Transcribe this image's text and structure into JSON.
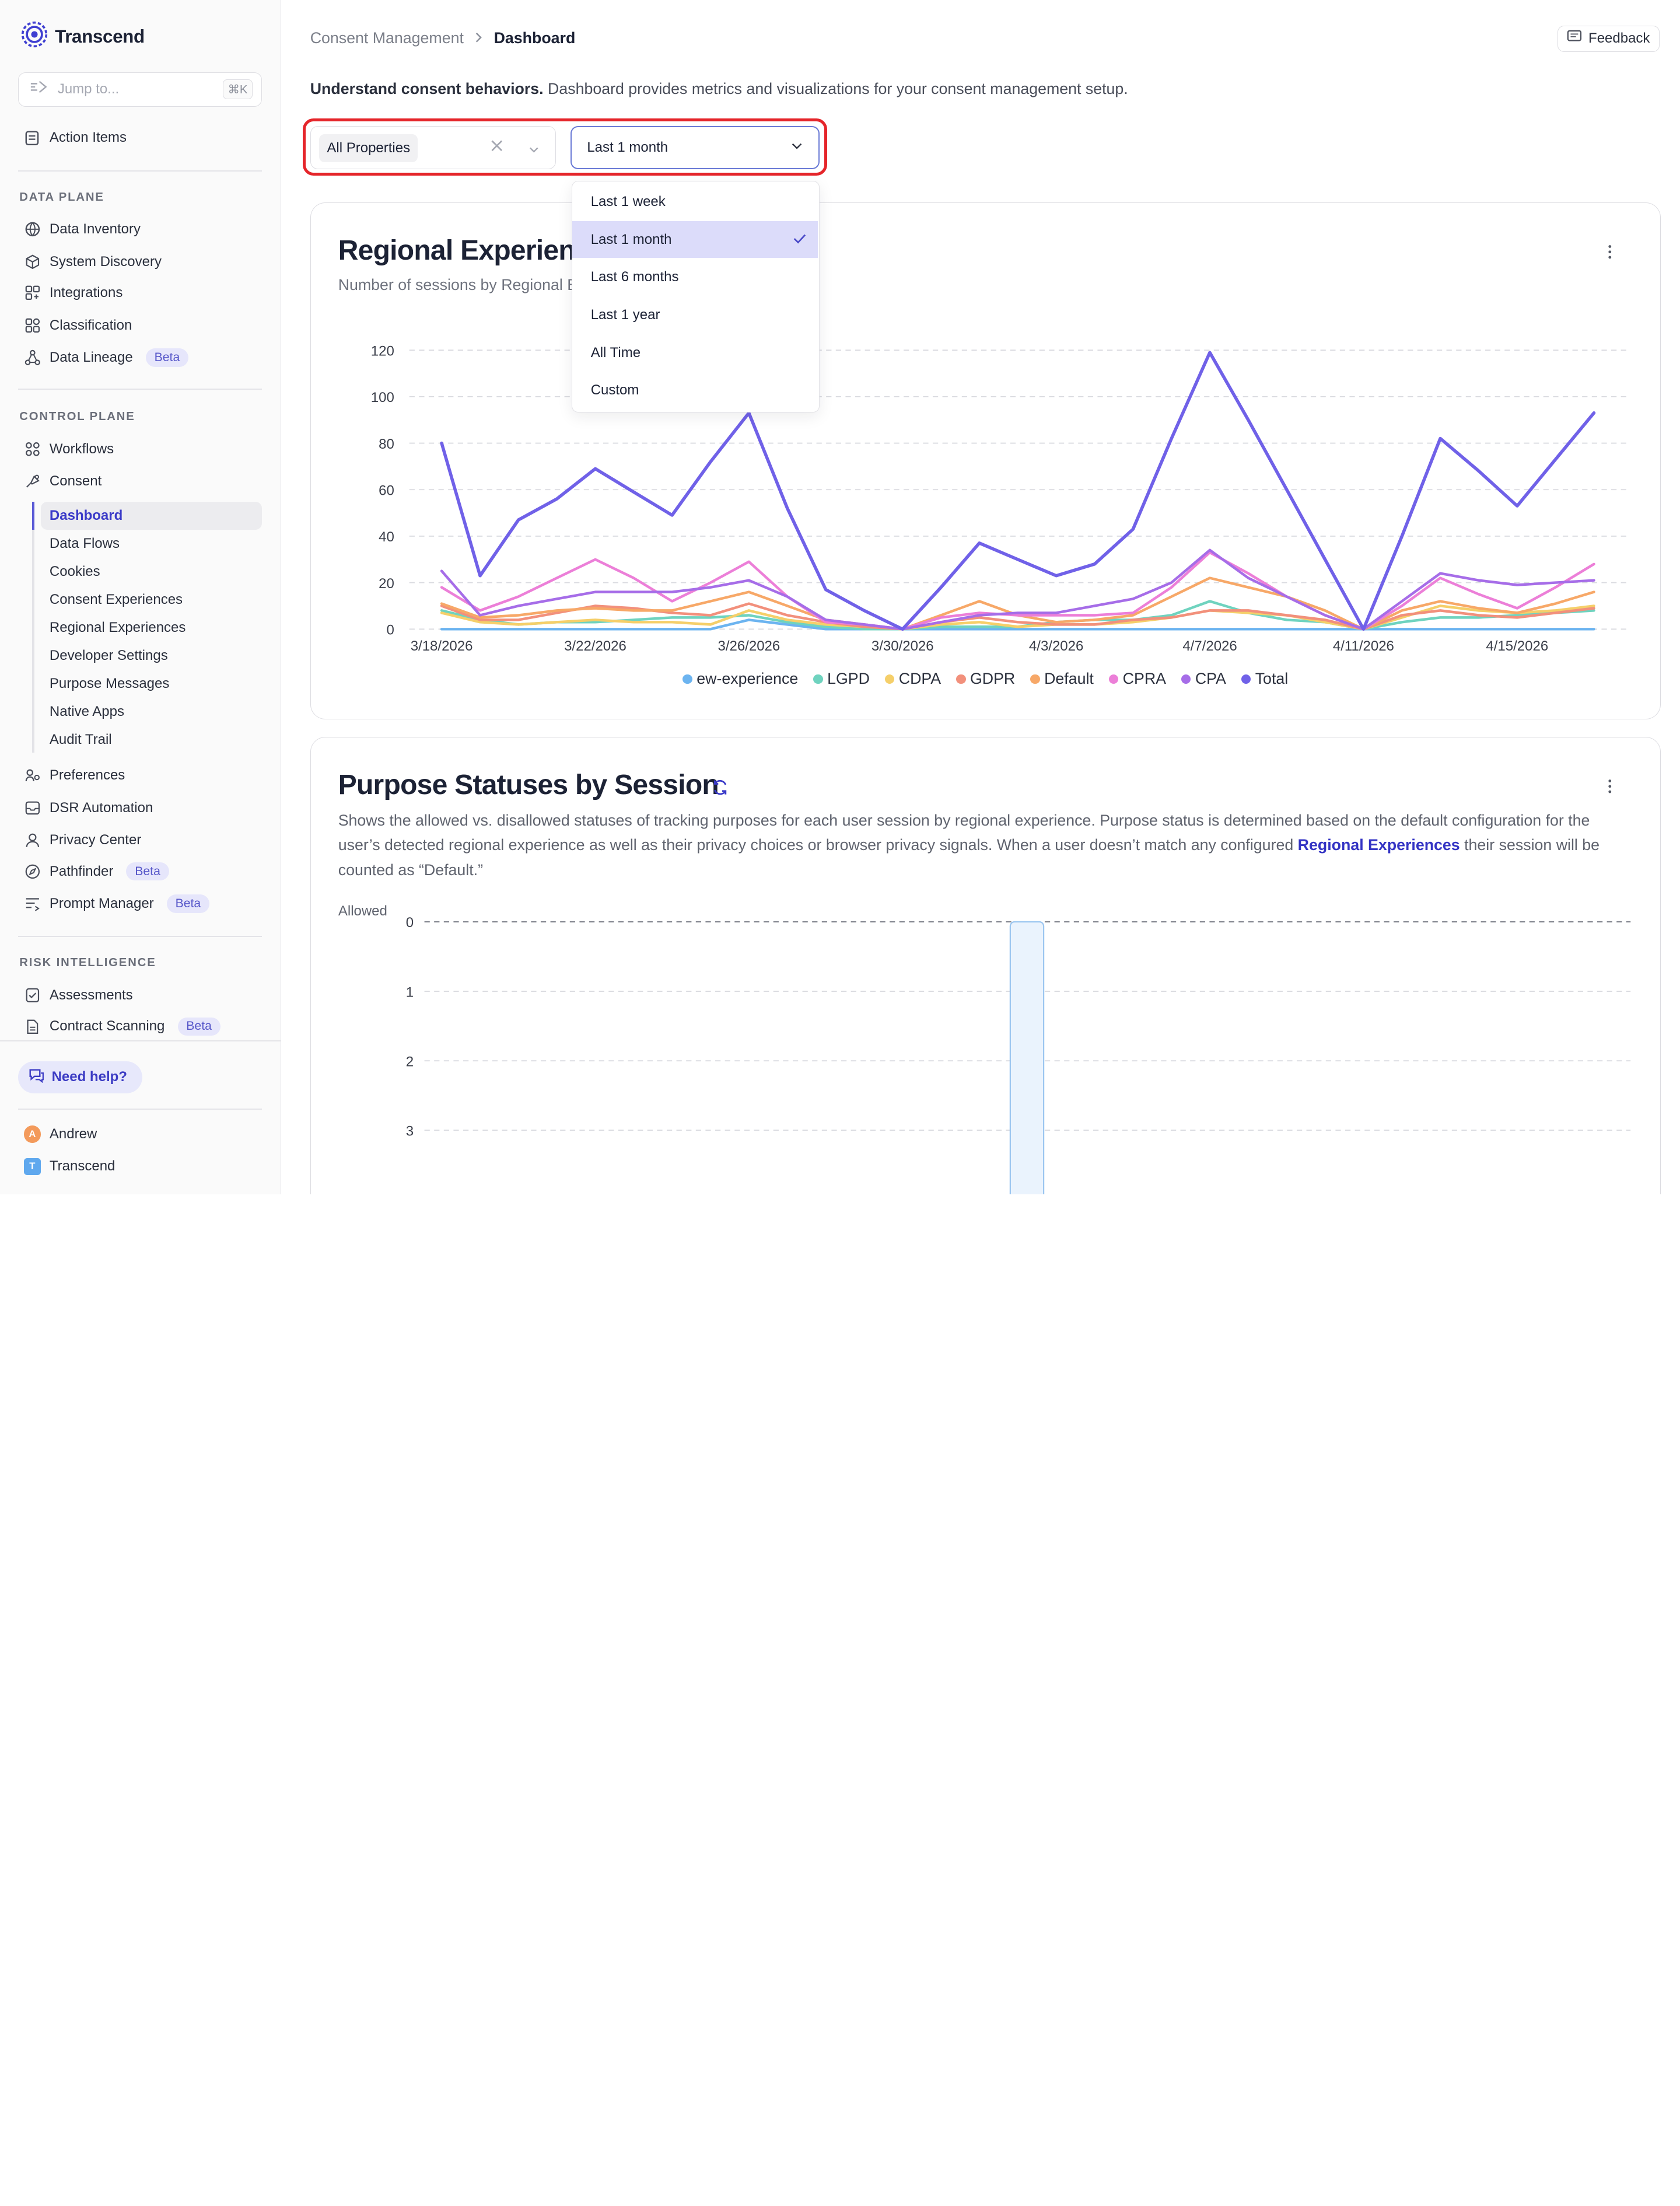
{
  "brand": {
    "name": "Transcend"
  },
  "search": {
    "placeholder": "Jump to...",
    "shortcut": "⌘K"
  },
  "sidebar": {
    "action_items": "Action Items",
    "data_plane": {
      "title": "DATA PLANE",
      "items": [
        "Data Inventory",
        "System Discovery",
        "Integrations",
        "Classification",
        "Data Lineage"
      ]
    },
    "control_plane": {
      "title": "CONTROL PLANE",
      "items": [
        "Workflows",
        "Consent"
      ],
      "consent_sub": [
        "Dashboard",
        "Data Flows",
        "Cookies",
        "Consent Experiences",
        "Regional Experiences",
        "Developer Settings",
        "Purpose Messages",
        "Native Apps",
        "Audit Trail"
      ],
      "after": [
        "Preferences",
        "DSR Automation",
        "Privacy Center",
        "Pathfinder",
        "Prompt Manager"
      ]
    },
    "risk": {
      "title": "RISK INTELLIGENCE",
      "items": [
        "Assessments",
        "Contract Scanning"
      ]
    },
    "beta_label": "Beta",
    "help": "Need help?",
    "user": {
      "name": "Andrew",
      "initial": "A",
      "org": "Transcend",
      "org_initial": "T"
    }
  },
  "breadcrumb": {
    "parent": "Consent Management",
    "current": "Dashboard"
  },
  "feedback_label": "Feedback",
  "intro": {
    "bold": "Understand consent behaviors.",
    "text": " Dashboard provides metrics and visualizations for your consent management setup."
  },
  "filters": {
    "property": "All Properties",
    "range": "Last 1 month",
    "range_options": [
      "Last 1 week",
      "Last 1 month",
      "Last 6 months",
      "Last 1 year",
      "All Time",
      "Custom"
    ],
    "selected_index": 1
  },
  "card1": {
    "title": "Regional Experienc",
    "subtitle": "Number of sessions by Regional E"
  },
  "card2": {
    "title": "Purpose Statuses by Session",
    "desc_part1": "Shows the allowed vs. disallowed statuses of tracking purposes for each user session by regional experience. Purpose status is determined based on the default configuration for the user’s detected regional experience as well as their privacy choices or browser privacy signals. When a user doesn’t match any configured ",
    "desc_link": "Regional Experiences",
    "desc_part2": " their session will be counted as “Default.”",
    "allowed_label": "Allowed"
  },
  "chart_data": [
    {
      "type": "line",
      "x": [
        "3/18/2026",
        "3/19/2026",
        "3/20/2026",
        "3/21/2026",
        "3/22/2026",
        "3/23/2026",
        "3/24/2026",
        "3/25/2026",
        "3/26/2026",
        "3/27/2026",
        "3/28/2026",
        "3/29/2026",
        "3/30/2026",
        "3/31/2026",
        "4/1/2026",
        "4/2/2026",
        "4/3/2026",
        "4/4/2026",
        "4/5/2026",
        "4/6/2026",
        "4/7/2026",
        "4/8/2026",
        "4/9/2026",
        "4/10/2026",
        "4/11/2026",
        "4/12/2026",
        "4/13/2026",
        "4/14/2026",
        "4/15/2026",
        "4/16/2026",
        "4/17/2026"
      ],
      "x_tick_labels": [
        "3/18/2026",
        "3/22/2026",
        "3/26/2026",
        "3/30/2026",
        "4/3/2026",
        "4/7/2026",
        "4/11/2026",
        "4/15/2026"
      ],
      "ylim": [
        0,
        120
      ],
      "y_ticks": [
        0,
        20,
        40,
        60,
        80,
        100,
        120
      ],
      "grid": true,
      "legend": "bottom",
      "series": [
        {
          "name": "ew-experience",
          "color": "#6cb4f0",
          "values": [
            0,
            0,
            0,
            0,
            0,
            0,
            0,
            0,
            4,
            2,
            0,
            0,
            0,
            0,
            0,
            0,
            0,
            0,
            0,
            0,
            0,
            0,
            0,
            0,
            0,
            0,
            0,
            0,
            0,
            0,
            0
          ]
        },
        {
          "name": "LGPD",
          "color": "#6fd3bf",
          "values": [
            8,
            4,
            2,
            3,
            3,
            4,
            5,
            5,
            6,
            3,
            1,
            0,
            0,
            1,
            1,
            1,
            3,
            4,
            4,
            6,
            12,
            7,
            4,
            3,
            0,
            3,
            5,
            5,
            6,
            7,
            8
          ]
        },
        {
          "name": "CDPA",
          "color": "#f5cf6a",
          "values": [
            7,
            3,
            2,
            3,
            4,
            3,
            3,
            2,
            8,
            4,
            2,
            1,
            0,
            2,
            3,
            1,
            2,
            2,
            3,
            5,
            8,
            7,
            6,
            3,
            0,
            5,
            10,
            8,
            7,
            8,
            10
          ]
        },
        {
          "name": "GDPR",
          "color": "#f2907c",
          "values": [
            10,
            4,
            4,
            7,
            10,
            9,
            7,
            6,
            11,
            6,
            3,
            1,
            0,
            3,
            5,
            3,
            2,
            2,
            4,
            5,
            8,
            8,
            6,
            4,
            0,
            6,
            8,
            6,
            5,
            7,
            9
          ]
        },
        {
          "name": "Default",
          "color": "#f7a868",
          "values": [
            11,
            5,
            6,
            8,
            9,
            8,
            8,
            12,
            16,
            10,
            4,
            2,
            0,
            6,
            12,
            6,
            3,
            4,
            6,
            14,
            22,
            18,
            14,
            8,
            0,
            8,
            12,
            9,
            7,
            11,
            16
          ]
        },
        {
          "name": "CPRA",
          "color": "#ec7fd8",
          "values": [
            18,
            8,
            14,
            22,
            30,
            22,
            12,
            20,
            29,
            14,
            3,
            2,
            0,
            5,
            7,
            6,
            6,
            6,
            7,
            18,
            33,
            24,
            14,
            6,
            0,
            10,
            22,
            15,
            9,
            18,
            28
          ]
        },
        {
          "name": "CPA",
          "color": "#a66de8",
          "values": [
            25,
            6,
            10,
            13,
            16,
            16,
            16,
            18,
            21,
            14,
            4,
            2,
            0,
            3,
            6,
            7,
            7,
            10,
            13,
            20,
            34,
            22,
            14,
            6,
            0,
            12,
            24,
            21,
            19,
            20,
            21
          ]
        },
        {
          "name": "Total",
          "color": "#7061e8",
          "values": [
            80,
            23,
            47,
            56,
            69,
            59,
            49,
            72,
            93,
            52,
            17,
            8,
            0,
            18,
            37,
            30,
            23,
            28,
            43,
            82,
            119,
            90,
            60,
            30,
            0,
            40,
            82,
            68,
            53,
            73,
            93
          ]
        }
      ]
    },
    {
      "type": "bar",
      "ylabel": "Allowed",
      "ylim": [
        0,
        4
      ],
      "y_ticks": [
        0,
        1,
        2,
        3,
        4
      ],
      "grid": true
    }
  ],
  "colors": {
    "accent": "#5b5bd6",
    "highlight": "#e5252a",
    "link": "#3434c4"
  }
}
